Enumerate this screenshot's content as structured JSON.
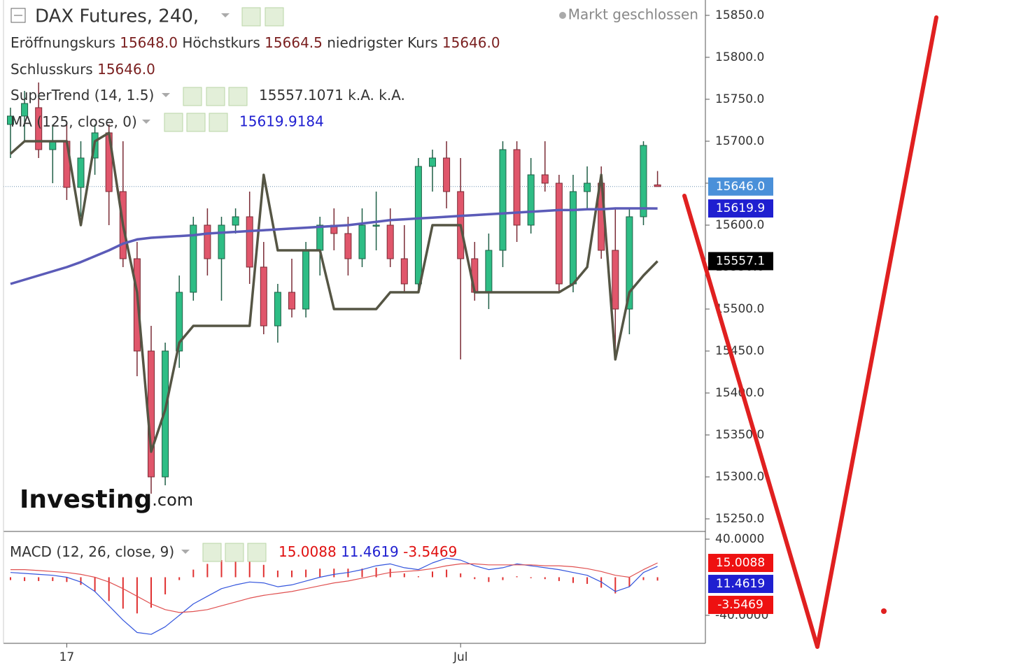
{
  "header": {
    "title": "DAX Futures, 240,",
    "status": "Markt geschlossen",
    "stats": [
      {
        "label": "Eröffnungskurs",
        "value": "15648.0"
      },
      {
        "label": "Höchstkurs",
        "value": "15664.5"
      },
      {
        "label": "niedrigster Kurs",
        "value": "15646.0"
      },
      {
        "label": "Schlusskurs",
        "value": "15646.0"
      }
    ],
    "logo": {
      "main": "Investing",
      "suffix": ".com"
    }
  },
  "chart_data": [
    {
      "type": "candlestick",
      "categories": [
        null,
        null,
        null,
        null,
        "17",
        null,
        null,
        null,
        null,
        null,
        null,
        null,
        null,
        null,
        null,
        null,
        null,
        null,
        null,
        null,
        null,
        null,
        null,
        null,
        null,
        null,
        null,
        null,
        null,
        null,
        null,
        null,
        "Jul",
        null,
        null,
        null,
        null,
        null,
        null,
        null,
        null,
        null,
        null,
        null,
        null,
        null,
        null
      ],
      "open": [
        15720,
        15730,
        15740,
        15690,
        15700,
        15645,
        15680,
        15710,
        15640,
        15560,
        15450,
        15300,
        15450,
        15520,
        15600,
        15560,
        15600,
        15610,
        15550,
        15480,
        15520,
        15500,
        15570,
        15600,
        15590,
        15560,
        15600,
        15600,
        15560,
        15530,
        15670,
        15680,
        15640,
        15560,
        15520,
        15570,
        15690,
        15600,
        15660,
        15650,
        15530,
        15640,
        15650,
        15570,
        15500,
        15610,
        15648
      ],
      "high": [
        15740,
        15760,
        15770,
        15720,
        15720,
        15700,
        15720,
        15720,
        15700,
        15580,
        15480,
        15460,
        15540,
        15610,
        15620,
        15610,
        15620,
        15640,
        15580,
        15530,
        15560,
        15580,
        15610,
        15620,
        15610,
        15620,
        15640,
        15620,
        15600,
        15680,
        15690,
        15700,
        15680,
        15580,
        15590,
        15700,
        15700,
        15680,
        15700,
        15660,
        15660,
        15670,
        15670,
        15620,
        15620,
        15700,
        15664.5
      ],
      "low": [
        15680,
        15700,
        15680,
        15650,
        15630,
        15610,
        15660,
        15600,
        15550,
        15420,
        15280,
        15290,
        15430,
        15510,
        15540,
        15510,
        15590,
        15530,
        15470,
        15460,
        15490,
        15490,
        15540,
        15570,
        15540,
        15550,
        15570,
        15550,
        15520,
        15520,
        15640,
        15620,
        15440,
        15510,
        15500,
        15550,
        15580,
        15590,
        15640,
        15520,
        15520,
        15620,
        15560,
        15450,
        15470,
        15600,
        15646
      ],
      "close": [
        15730,
        15745,
        15690,
        15700,
        15645,
        15680,
        15710,
        15640,
        15560,
        15450,
        15300,
        15450,
        15520,
        15600,
        15560,
        15600,
        15610,
        15550,
        15480,
        15520,
        15500,
        15570,
        15600,
        15590,
        15560,
        15600,
        15600,
        15560,
        15530,
        15670,
        15680,
        15640,
        15560,
        15520,
        15570,
        15690,
        15600,
        15660,
        15650,
        15530,
        15640,
        15650,
        15570,
        15500,
        15610,
        15695,
        15646
      ],
      "up_color": "#2ebd85",
      "down_color": "#e0566b",
      "ylim": [
        15235,
        15868.3
      ],
      "yticks": [
        {
          "value": 15850,
          "label": "15850.0"
        },
        {
          "value": 15800,
          "label": "15800.0"
        },
        {
          "value": 15750,
          "label": "15750.0"
        },
        {
          "value": 15700,
          "label": "15700.0"
        },
        {
          "value": 15650,
          "label": "15650.0"
        },
        {
          "value": 15600,
          "label": "15600.0"
        },
        {
          "value": 15550,
          "label": "15550.0"
        },
        {
          "value": 15500,
          "label": "15500.0"
        },
        {
          "value": 15450,
          "label": "15450.0"
        },
        {
          "value": 15400,
          "label": "15400.0"
        },
        {
          "value": 15350,
          "label": "15350.0"
        },
        {
          "value": 15300,
          "label": "15300.0"
        },
        {
          "value": 15250,
          "label": "15250.0"
        }
      ],
      "series": [
        {
          "name": "SuperTrend",
          "params": "(14, 1.5)",
          "readout": "15557.1071",
          "extra": "k.A. k.A.",
          "color": "#555544",
          "values": [
            15685,
            15700,
            15700,
            15700,
            15700,
            15600,
            15700,
            15710,
            15600,
            15520,
            15330,
            15380,
            15460,
            15480,
            15480,
            15480,
            15480,
            15480,
            15660,
            15570,
            15570,
            15570,
            15570,
            15500,
            15500,
            15500,
            15500,
            15520,
            15520,
            15520,
            15600,
            15600,
            15600,
            15520,
            15520,
            15520,
            15520,
            15520,
            15520,
            15520,
            15530,
            15550,
            15660,
            15440,
            15520,
            15540,
            15557.1
          ]
        },
        {
          "name": "MA",
          "params": "(125, close, 0)",
          "readout": "15619.9184",
          "color": "#5b5bb8",
          "values": [
            15530,
            15535,
            15540,
            15545,
            15550,
            15556,
            15563,
            15570,
            15578,
            15583,
            15585,
            15586,
            15587,
            15588,
            15590,
            15591,
            15592,
            15593,
            15594,
            15595,
            15596,
            15597,
            15598,
            15599,
            15600,
            15602,
            15604,
            15606,
            15607,
            15608,
            15609,
            15610,
            15611,
            15612,
            15613,
            15614,
            15615,
            15616,
            15617,
            15618,
            15618,
            15619,
            15619,
            15620,
            15620,
            15620,
            15619.9
          ]
        }
      ],
      "price_labels": [
        {
          "value": 15646,
          "label": "15646.0",
          "color": "#4a90d9"
        },
        {
          "value": 15619.9,
          "label": "15619.9",
          "color": "#1f1fd0"
        },
        {
          "value": 15557.1,
          "label": "15557.1",
          "color": "#000000"
        }
      ]
    },
    {
      "type": "macd",
      "name": "MACD",
      "params": "(12, 26, close, 9)",
      "readouts": [
        "15.0088",
        "11.4619",
        "-3.5469"
      ],
      "ylim": [
        -69.4,
        46.6
      ],
      "yticks": [
        {
          "value": 40,
          "label": "40.0000"
        },
        {
          "value": -40,
          "label": "-40.0000"
        }
      ],
      "histogram": {
        "color": "#e03030",
        "values": [
          -3,
          -4,
          -4,
          -4,
          -5,
          -8,
          -15,
          -25,
          -33,
          -38,
          -32,
          -18,
          -3,
          8,
          14,
          18,
          18,
          17,
          13,
          7,
          7,
          8,
          9,
          9,
          9,
          9,
          10,
          9,
          4,
          1,
          6,
          8,
          4,
          -2,
          -5,
          -3,
          1,
          -1,
          -2,
          -4,
          -6,
          -7,
          -11,
          -17,
          -10,
          -3,
          -3.5469
        ]
      },
      "series": [
        {
          "color": "#3355dd",
          "values": [
            5,
            4,
            3,
            2,
            0,
            -5,
            -15,
            -30,
            -45,
            -58,
            -60,
            -52,
            -40,
            -28,
            -20,
            -12,
            -8,
            -5,
            -6,
            -10,
            -8,
            -4,
            0,
            3,
            5,
            8,
            12,
            14,
            10,
            8,
            15,
            20,
            18,
            12,
            8,
            10,
            14,
            12,
            10,
            8,
            5,
            2,
            -5,
            -15,
            -10,
            5,
            11.4619
          ]
        },
        {
          "color": "#e05050",
          "values": [
            8,
            8,
            7,
            6,
            5,
            3,
            0,
            -5,
            -12,
            -20,
            -28,
            -34,
            -37,
            -36,
            -34,
            -30,
            -26,
            -22,
            -19,
            -17,
            -15,
            -12,
            -9,
            -6,
            -4,
            -1,
            2,
            5,
            6,
            7,
            9,
            12,
            14,
            14,
            13,
            13,
            13,
            13,
            12,
            12,
            11,
            9,
            6,
            2,
            0,
            8,
            15.0088
          ]
        }
      ],
      "price_labels": [
        {
          "value": 15.0088,
          "label": "15.0088",
          "color": "#ee1111"
        },
        {
          "value": 11.4619,
          "label": "11.4619",
          "color": "#1f1fd0"
        },
        {
          "value": -3.5469,
          "label": "-3.5469",
          "color": "#ee1111"
        }
      ]
    }
  ]
}
